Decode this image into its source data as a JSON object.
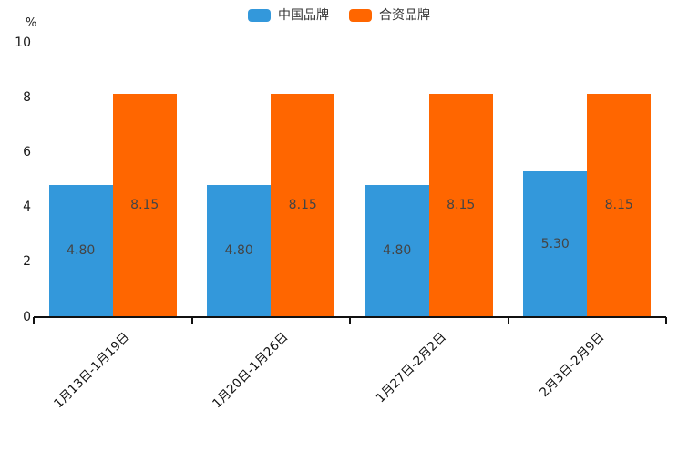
{
  "chart_data": {
    "type": "bar",
    "title": "",
    "unit_label": "%",
    "categories": [
      "1月13日-1月19日",
      "1月20日-1月26日",
      "1月27日-2月2日",
      "2月3日-2月9日"
    ],
    "series": [
      {
        "name": "中国品牌",
        "color": "#3398DB",
        "values": [
          4.8,
          4.8,
          4.8,
          5.3
        ],
        "value_labels": [
          "4.80",
          "4.80",
          "4.80",
          "5.30"
        ]
      },
      {
        "name": "合资品牌",
        "color": "#FF6600",
        "values": [
          8.15,
          8.15,
          8.15,
          8.15
        ],
        "value_labels": [
          "8.15",
          "8.15",
          "8.15",
          "8.15"
        ]
      }
    ],
    "ylabel": "%",
    "ylim": [
      0,
      10
    ],
    "yticks": [
      "0",
      "2",
      "4",
      "6",
      "8",
      "10"
    ],
    "grid": false,
    "legend_position": "top-center",
    "value_label_position": "inside-center",
    "value_label_color": "#444444",
    "xtick_rotation": 45,
    "axis_color": "#111111",
    "background_color": "#ffffff"
  }
}
